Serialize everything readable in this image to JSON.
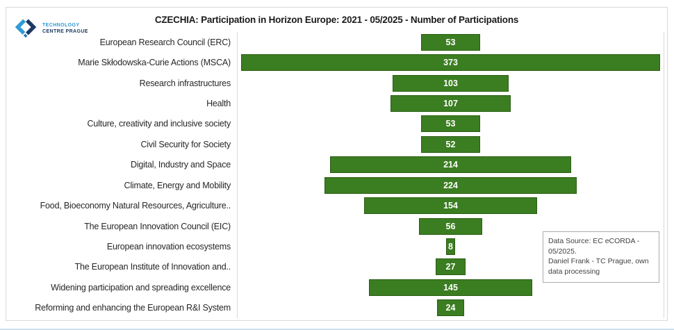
{
  "header": {
    "logo": {
      "icon": "tc-prague-diamond-logo",
      "line1": "TECHNOLOGY",
      "line2": "CENTRE PRAGUE"
    },
    "title": "CZECHIA: Participation in Horizon Europe: 2021 - 05/2025 - Number of Participations"
  },
  "chart_data": {
    "type": "bar",
    "subtype": "centered-horizontal-bars",
    "title": "CZECHIA: Participation in Horizon Europe: 2021 - 05/2025 - Number of Participations",
    "categories": [
      "European Research Council (ERC)",
      "Marie Skłodowska-Curie Actions (MSCA)",
      "Research infrastructures",
      "Health",
      "Culture, creativity and inclusive society",
      "Civil Security for Society",
      "Digital, Industry and Space",
      "Climate, Energy and Mobility",
      "Food, Bioeconomy Natural Resources, Agriculture..",
      "The European Innovation Council (EIC)",
      "European innovation ecosystems",
      "The European Institute of Innovation and..",
      "Widening participation and spreading excellence",
      "Reforming and enhancing the European R&I System"
    ],
    "values": [
      53,
      373,
      103,
      107,
      53,
      52,
      214,
      224,
      154,
      56,
      8,
      27,
      145,
      24
    ],
    "data_labels": "inside-center-white-bold",
    "legend": "none",
    "gridlines": "none",
    "xlabel": "",
    "ylabel": "",
    "xlim": [
      0,
      379
    ]
  },
  "source_note": {
    "lines": [
      "Data Source: EC eCORDA - 05/2025.",
      "Daniel Frank - TC Prague, own data processing"
    ]
  },
  "colors": {
    "bar_fill": "#3B7D21",
    "bar_border": "#2A5E13",
    "frame_border": "#D9D9D9",
    "title_text": "#1A1A1A",
    "label_text": "#262626",
    "logo_light_blue": "#2E9BD6",
    "logo_medium_blue": "#2E75B6",
    "logo_dark_blue": "#1B3A63",
    "source_text": "#404040"
  }
}
